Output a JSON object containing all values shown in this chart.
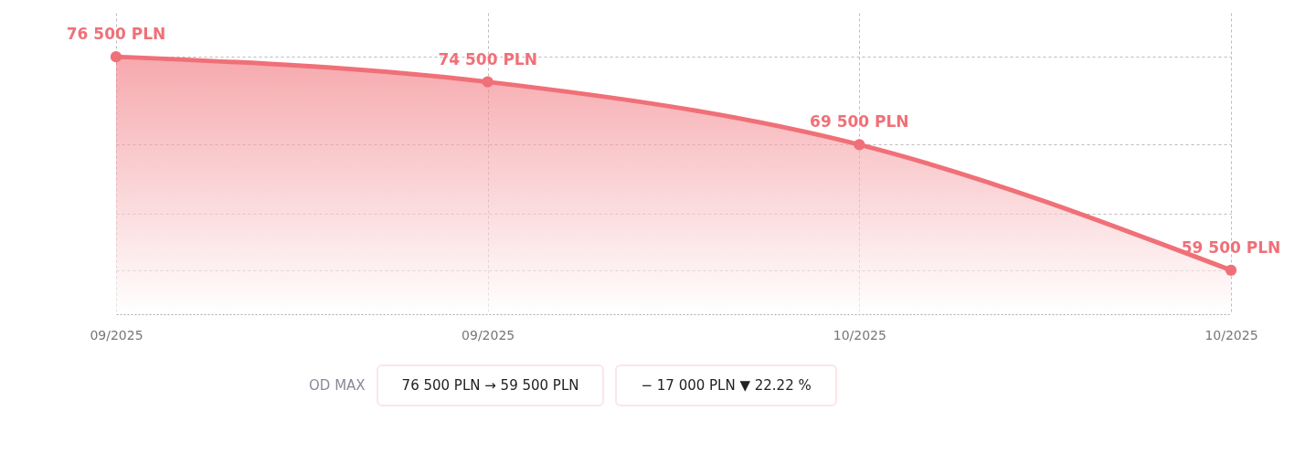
{
  "chart_data": {
    "type": "area",
    "categories": [
      "09/2025",
      "09/2025",
      "10/2025",
      "10/2025"
    ],
    "series": [
      {
        "color": "#f07078",
        "values": [
          76500,
          74500,
          69500,
          59500
        ],
        "value_labels": [
          "76 500 PLN",
          "74 500 PLN",
          "69 500 PLN",
          "59 500 PLN"
        ]
      }
    ],
    "ylim": [
      56000,
      80000
    ],
    "yticks": [
      {
        "value": 59500,
        "label": null
      },
      {
        "value": 64000,
        "label": null
      },
      {
        "value": 69500,
        "label": null
      },
      {
        "value": 76500,
        "label": null
      }
    ],
    "grid": true,
    "marker": "circle",
    "tick_labels": "x",
    "annotations": [
      "OD MAX",
      "76 500 PLN → 59 500 PLN",
      "− 17 000 PLN ▼ 22.22 %"
    ]
  }
}
